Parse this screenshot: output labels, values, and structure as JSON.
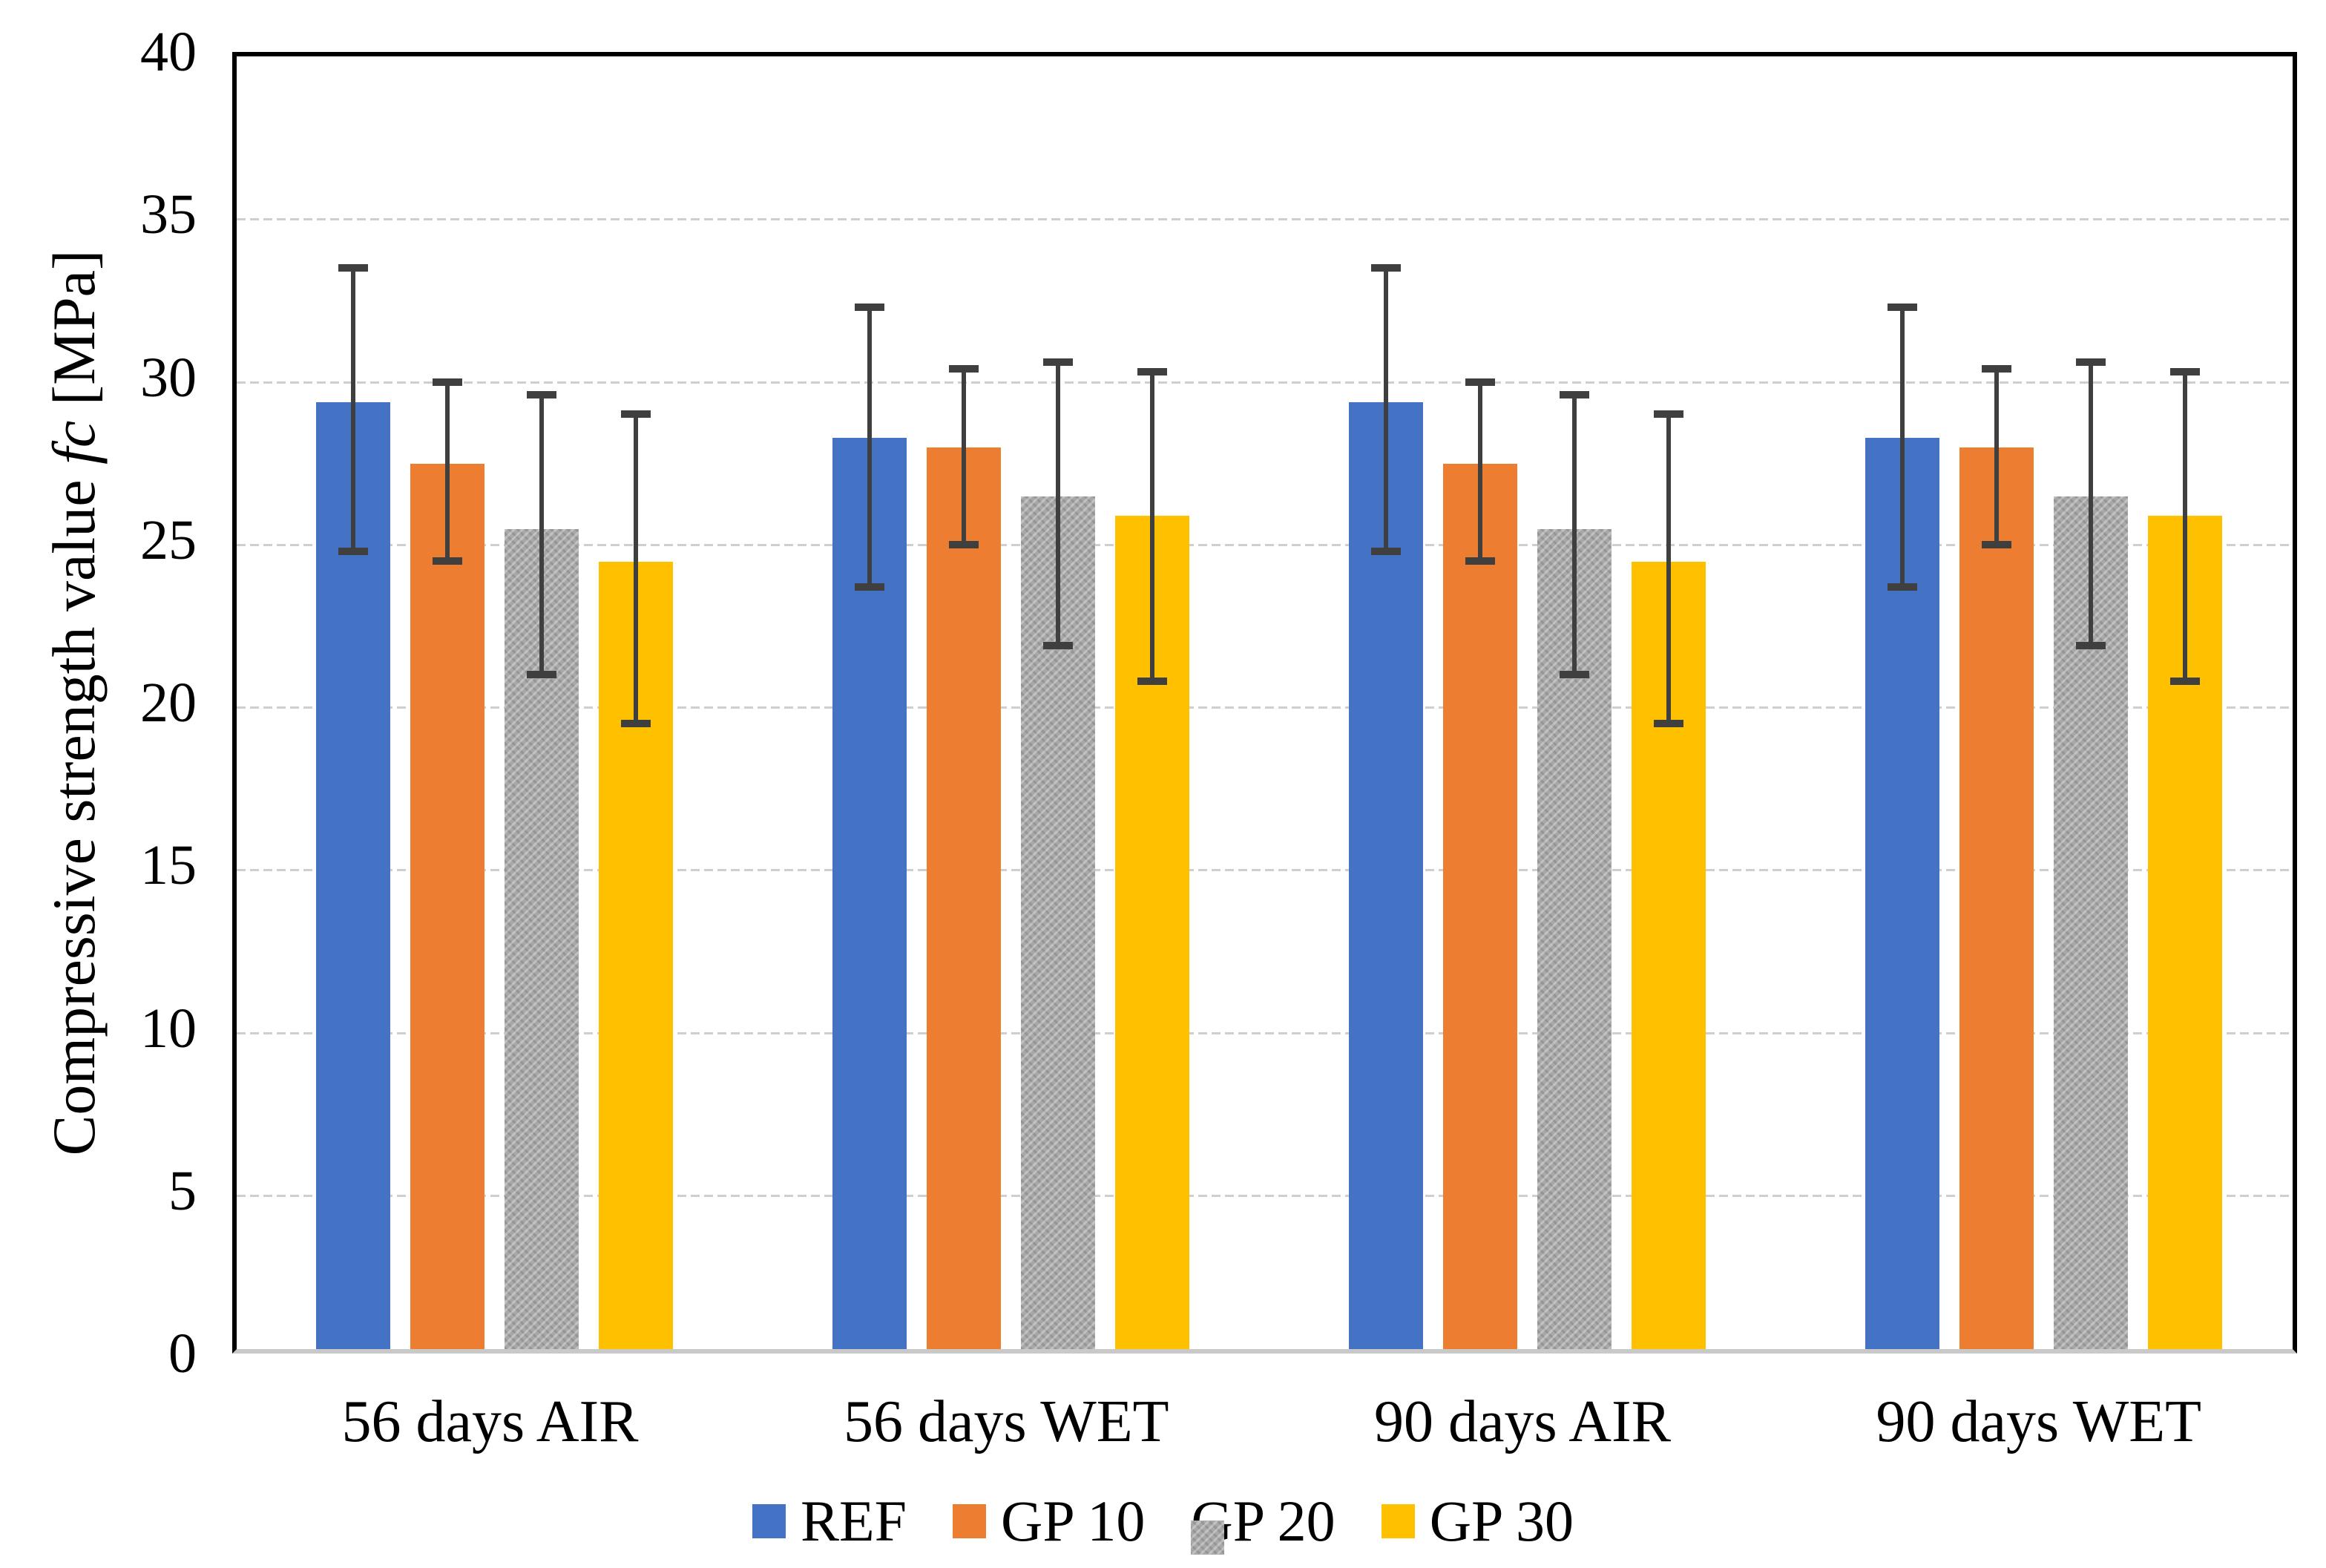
{
  "chart_data": {
    "type": "bar",
    "title": "",
    "ylabel": "Compressive strength value fc [MPa]",
    "ylabel_parts": {
      "prefix": "Compressive strength value ",
      "italic": "fc",
      "suffix": " [MPa]"
    },
    "xlabel": "",
    "ylim": [
      0,
      40
    ],
    "yticks": [
      0,
      5,
      10,
      15,
      20,
      25,
      30,
      35,
      40
    ],
    "grid": true,
    "legend_position": "bottom",
    "categories": [
      "56 days AIR",
      "56 days WET",
      "90 days AIR",
      "90 days WET"
    ],
    "series": [
      {
        "name": "REF",
        "color": "#4472C4",
        "pattern": false,
        "values": [
          29.1,
          28.0,
          29.1,
          28.0
        ],
        "error_low": [
          24.8,
          23.7,
          24.8,
          23.7
        ],
        "error_high": [
          33.5,
          32.3,
          33.5,
          32.3
        ]
      },
      {
        "name": "GP 10",
        "color": "#ED7D31",
        "pattern": false,
        "values": [
          27.2,
          27.7,
          27.2,
          27.7
        ],
        "error_low": [
          24.5,
          25.0,
          24.5,
          25.0
        ],
        "error_high": [
          30.0,
          30.4,
          30.0,
          30.4
        ]
      },
      {
        "name": "GP 20",
        "color": "#A8A8A8",
        "pattern": true,
        "values": [
          25.2,
          26.2,
          25.2,
          26.2
        ],
        "error_low": [
          21.0,
          21.9,
          21.0,
          21.9
        ],
        "error_high": [
          29.6,
          30.6,
          29.6,
          30.6
        ]
      },
      {
        "name": "GP 30",
        "color": "#FFC000",
        "pattern": false,
        "values": [
          24.2,
          25.6,
          24.2,
          25.6
        ],
        "error_low": [
          19.5,
          20.8,
          19.5,
          20.8
        ],
        "error_high": [
          29.0,
          30.3,
          29.0,
          30.3
        ]
      }
    ],
    "colors": {
      "error_bar": "#3F3F3F",
      "gridline": "#CFCFCF",
      "axis_border": "#000000",
      "baseline": "#C9C9C9",
      "background": "#FFFFFF"
    }
  }
}
